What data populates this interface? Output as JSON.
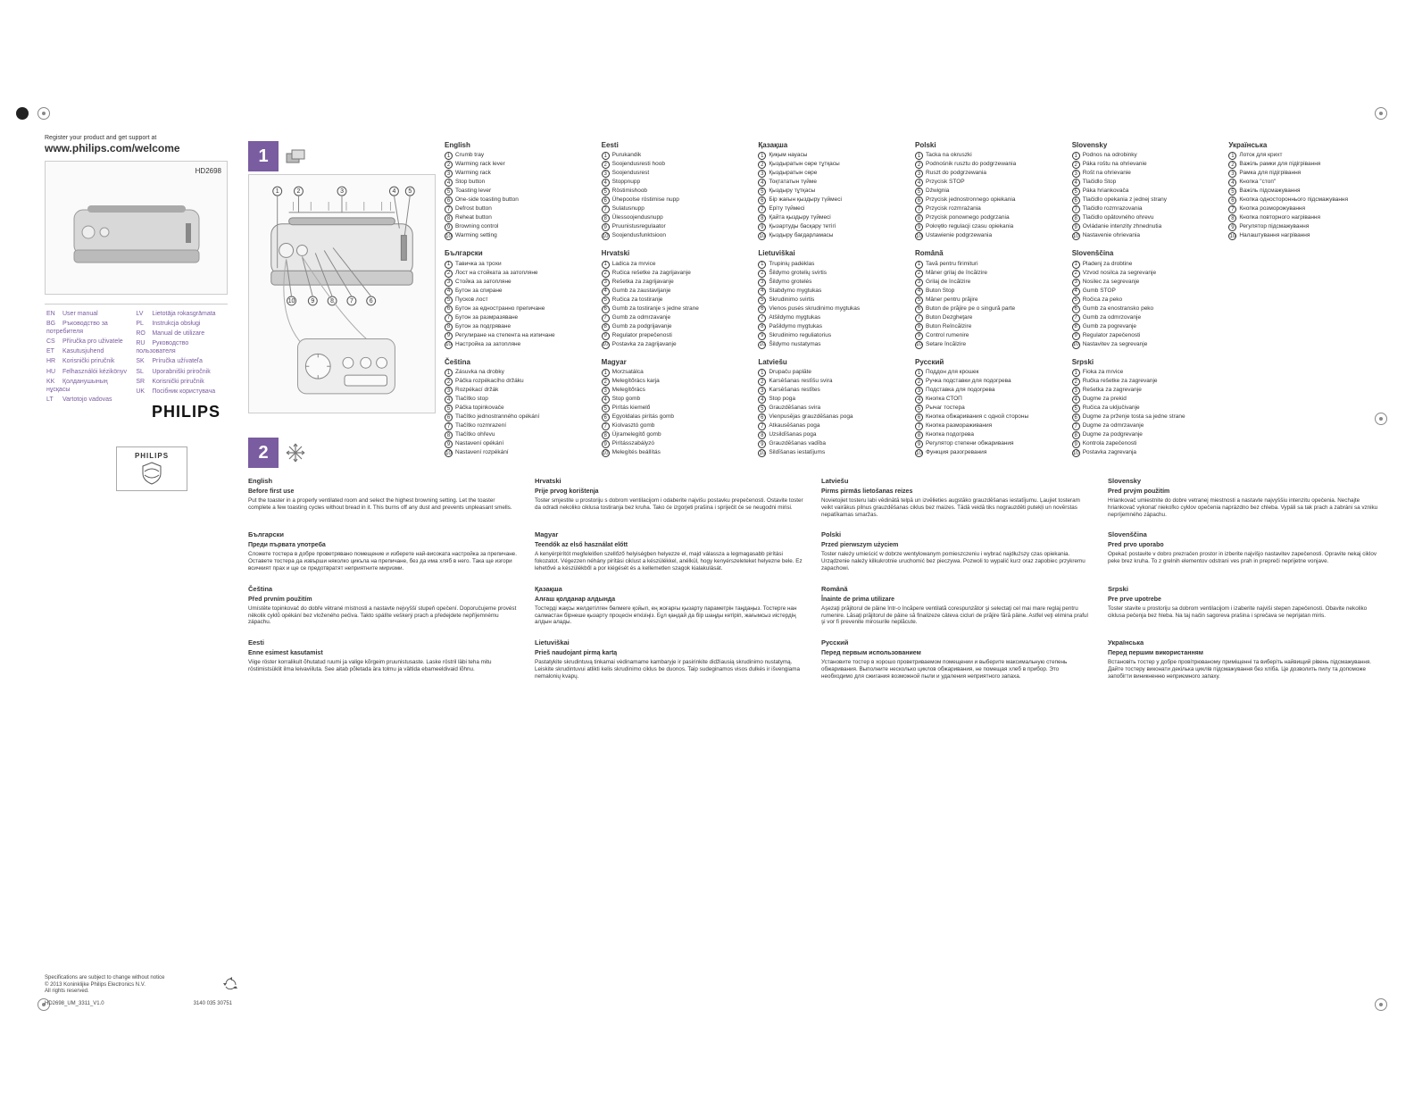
{
  "register_small": "Register your product and get support at",
  "register_url": "www.philips.com/welcome",
  "model": "HD2698",
  "brand": "PHILIPS",
  "lang_list_left": [
    {
      "code": "EN",
      "label": "User manual"
    },
    {
      "code": "BG",
      "label": "Ръководство за потребителя"
    },
    {
      "code": "CS",
      "label": "Příručka pro uživatele"
    },
    {
      "code": "ET",
      "label": "Kasutusjuhend"
    },
    {
      "code": "HR",
      "label": "Korisnički priručnik"
    },
    {
      "code": "HU",
      "label": "Felhasználói kézikönyv"
    },
    {
      "code": "KK",
      "label": "Қолданушының нұсқасы"
    },
    {
      "code": "LT",
      "label": "Vartotojo vadovas"
    }
  ],
  "lang_list_right": [
    {
      "code": "LV",
      "label": "Lietotāja rokasgrāmata"
    },
    {
      "code": "PL",
      "label": "Instrukcja obsługi"
    },
    {
      "code": "RO",
      "label": "Manual de utilizare"
    },
    {
      "code": "RU",
      "label": "Руководство пользователя"
    },
    {
      "code": "SK",
      "label": "Príručka užívateľa"
    },
    {
      "code": "SL",
      "label": "Uporabniški priročnik"
    },
    {
      "code": "SR",
      "label": "Korisnički priručnik"
    },
    {
      "code": "UK",
      "label": "Посібник користувача"
    }
  ],
  "footer": {
    "line1": "Specifications are subject to change without notice",
    "line2": "© 2013 Koninklijke Philips Electronics N.V.",
    "line3": "All rights reserved.",
    "doc": "HD2698_UM_3311_V1.0",
    "code": "3140 035 30751"
  },
  "step1": "1",
  "step2": "2",
  "callouts": [
    "1",
    "2",
    "3",
    "4",
    "5",
    "6",
    "7",
    "8",
    "9",
    "10"
  ],
  "parts_columns": [
    [
      {
        "lang": "English",
        "items": [
          "Crumb tray",
          "Warming rack lever",
          "Warming rack",
          "Stop button",
          "Toasting lever",
          "One-side toasting button",
          "Defrost button",
          "Reheat button",
          "Browning control",
          "Warming setting"
        ]
      },
      {
        "lang": "Български",
        "items": [
          "Тавичка за трохи",
          "Лост на стойката за затопляне",
          "Стойка за затопляне",
          "Бутон за спиране",
          "Пусков лост",
          "Бутон за едностранно препичане",
          "Бутон за размразяване",
          "Бутон за подгряване",
          "Регулиране на степента на изпичане",
          "Настройка за затопляне"
        ]
      },
      {
        "lang": "Čeština",
        "items": [
          "Zásuvka na drobky",
          "Páčka rozpékacího držáku",
          "Rozpékací držák",
          "Tlačítko stop",
          "Páčka topinkovače",
          "Tlačítko jednostranného opékání",
          "Tlačítko rozmrazení",
          "Tlačítko ohřevu",
          "Nastavení opékání",
          "Nastavení rozpékání"
        ]
      }
    ],
    [
      {
        "lang": "Eesti",
        "items": [
          "Purukandik",
          "Soojendusresti hoob",
          "Soojendusrest",
          "Stoppnupp",
          "Röstimishoob",
          "Ühepoolse röstimise nupp",
          "Sulatusnupp",
          "Ülessoojendusnupp",
          "Pruunistusregulaator",
          "Soojendusfunktsioon"
        ]
      },
      {
        "lang": "Hrvatski",
        "items": [
          "Ladica za mrvice",
          "Ručica rešetke za zagrijavanje",
          "Rešetka za zagrijavanje",
          "Gumb za zaustavljanje",
          "Ručica za tostiranje",
          "Gumb za tostiranje s jedne strane",
          "Gumb za odmrzavanje",
          "Gumb za podgrijavanje",
          "Regulator prepečenosti",
          "Postavka za zagrijavanje"
        ]
      },
      {
        "lang": "Magyar",
        "items": [
          "Morzsatálca",
          "Melegítőrács karja",
          "Melegítőrács",
          "Stop gomb",
          "Pirítás kiemelő",
          "Egyoldalas pirítás gomb",
          "Kiolvasztó gomb",
          "Újramelegítő gomb",
          "Pirításszabályzó",
          "Melegítés beállítás"
        ]
      }
    ],
    [
      {
        "lang": "Қазақша",
        "items": [
          "Қиқым науасы",
          "Қыздыратын сөре тұтқасы",
          "Қыздыратын сөре",
          "Тоқтататын түйме",
          "Қыздыру тұтқасы",
          "Бір жағын қыздыру түймесі",
          "Еріту түймесі",
          "Қайта қыздыру түймесі",
          "Қызартуды басқару тетігі",
          "Қыздыру бағдарламасы"
        ]
      },
      {
        "lang": "Lietuviškai",
        "items": [
          "Trupinių padėklas",
          "Šildymo grotelių svirtis",
          "Šildymo grotelės",
          "Stabdymo mygtukas",
          "Skrudinimo svirtis",
          "Vienos pusės skrudinimo mygtukas",
          "Atšildymo mygtukas",
          "Pašildymo mygtukas",
          "Skrudinimo reguliatorius",
          "Šildymo nustatymas"
        ]
      },
      {
        "lang": "Latviešu",
        "items": [
          "Drupaču paplāte",
          "Karsēšanas restīšu svira",
          "Karsēšanas restītes",
          "Stop poga",
          "Grauzdēšanas svira",
          "Vienpusējas grauzdēšanas poga",
          "Atkausēšanas poga",
          "Uzsildīšanas poga",
          "Grauzdēšanas vadība",
          "Sildīšanas iestatījums"
        ]
      }
    ],
    [
      {
        "lang": "Polski",
        "items": [
          "Tacka na okruszki",
          "Podnośnik rusztu do podgrzewania",
          "Ruszt do podgrzewania",
          "Przycisk STOP",
          "Dźwignia",
          "Przycisk jednostronnego opiekania",
          "Przycisk rozmrażania",
          "Przycisk ponownego podgrzania",
          "Pokrętło regulacji czasu opiekania",
          "Ustawienie podgrzewania"
        ]
      },
      {
        "lang": "Română",
        "items": [
          "Tavă pentru firimituri",
          "Mâner grilaj de încălzire",
          "Grilaj de încălzire",
          "Buton Stop",
          "Mâner pentru prăjire",
          "Buton de prăjire pe o singură parte",
          "Buton Dezgheţare",
          "Buton Reîncălzire",
          "Control rumenire",
          "Setare încălzire"
        ]
      },
      {
        "lang": "Русский",
        "items": [
          "Поддон для крошек",
          "Ручка подставки для подогрева",
          "Подставка для подогрева",
          "Кнопка СТОП",
          "Рычаг тостера",
          "Кнопка обжаривания с одной стороны",
          "Кнопка размораживания",
          "Кнопка подогрева",
          "Регулятор степени обжаривания",
          "Функция разогревания"
        ]
      }
    ],
    [
      {
        "lang": "Slovensky",
        "items": [
          "Podnos na odrobinky",
          "Páka roštu na ohrievanie",
          "Rošt na ohrievanie",
          "Tlačidlo Stop",
          "Páka hriankovača",
          "Tlačidlo opekania z jednej strany",
          "Tlačidlo rozmrazovania",
          "Tlačidlo opätovného ohrevu",
          "Ovládanie intenzity zhnednutia",
          "Nastavenie ohrievania"
        ]
      },
      {
        "lang": "Slovenščina",
        "items": [
          "Pladenj za drobtine",
          "Vzvod nosilca za segrevanje",
          "Nosilec za segrevanje",
          "Gumb STOP",
          "Ročica za peko",
          "Gumb za enostransko peko",
          "Gumb za odmrzovanje",
          "Gumb za pogrevanje",
          "Regulator zapečenosti",
          "Nastavitev za segrevanje"
        ]
      },
      {
        "lang": "Srpski",
        "items": [
          "Fioka za mrvice",
          "Ručka rešetke za zagrevanje",
          "Rešetka za zagrevanje",
          "Dugme za prekid",
          "Ručica za uključivanje",
          "Dugme za prženje tosta sa jedne strane",
          "Dugme za odmrzavanje",
          "Dugme za podgrevanje",
          "Kontrola zapečenosti",
          "Postavka zagrevanja"
        ]
      }
    ],
    [
      {
        "lang": "Українська",
        "items": [
          "Лоток для крихт",
          "Важіль рамки для підігрівання",
          "Рамка для підігрівання",
          "Кнопка \"стоп\"",
          "Важіль підсмажування",
          "Кнопка одностороннього підсмажування",
          "Кнопка розморожування",
          "Кнопка повторного нагрівання",
          "Регулятор підсмажування",
          "Налаштування нагрівання"
        ]
      }
    ]
  ],
  "instructions": [
    {
      "lang": "English",
      "sub": "Before first use",
      "body": "Put the toaster in a properly ventilated room and select the highest browning setting. Let the toaster complete a few toasting cycles without bread in it. This burns off any dust and prevents unpleasant smells."
    },
    {
      "lang": "Hrvatski",
      "sub": "Prije prvog korištenja",
      "body": "Toster smjestite u prostoriju s dobrom ventilacijom i odaberite najvišu postavku prepečenosti. Ostavite toster da odradi nekoliko ciklusa tostiranja bez kruha. Tako će izgorjeti prašina i spriječit će se neugodni mirisi."
    },
    {
      "lang": "Latviešu",
      "sub": "Pirms pirmās lietošanas reizes",
      "body": "Novietojiet tosteru labi vēdinātā telpā un izvēlieties augstāko grauzdēšanas iestatījumu. Ļaujiet tosteram veikt vairākus pilnus grauzdēšanas ciklus bez maizes. Tādā veidā tiks nograuzdēti putekļi un novērstas nepatīkamas smaržas."
    },
    {
      "lang": "Slovensky",
      "sub": "Pred prvým použitím",
      "body": "Hriankovač umiestnite do dobre vetranej miestnosti a nastavte najvyššiu intenzitu opečenia. Nechajte hriankovač vykonať niekoľko cyklov opečenia naprázdno bez chleba. Vypáli sa tak prach a zabráni sa vzniku nepríjemného zápachu."
    },
    {
      "lang": "Български",
      "sub": "Преди първата употреба",
      "body": "Сложете тостера в добре проветрявано помещение и изберете най-високата настройка за препичане. Оставете тостера да извърши няколко цикъла на препичане, без да има хляб в него. Така ще изгори всичкият прах и ще се предотвратят неприятните миризми."
    },
    {
      "lang": "Magyar",
      "sub": "Teendők az első használat előtt",
      "body": "A kenyérpirítót megfelelően szellőző helyiségben helyezze el, majd válassza a legmagasabb pirítási fokozatot. Végezzen néhány pirítási ciklust a készülékkel, anélkül, hogy kenyérszeleteket helyezne bele. Ez lehetővé a készülékből a por kiégését és a kellemetlen szagok kialakulását."
    },
    {
      "lang": "Polski",
      "sub": "Przed pierwszym użyciem",
      "body": "Toster należy umieścić w dobrze wentylowanym pomieszczeniu i wybrać najdłuższy czas opiekania. Urządzenie należy kilkukrotnie uruchomić bez pieczywa. Pozwoli to wypalić kurz oraz zapobiec przykremu zapachowi."
    },
    {
      "lang": "Slovenščina",
      "sub": "Pred prvo uporabo",
      "body": "Opekač postavite v dobro prezračen prostor in izberite najvišjo nastavitev zapečenosti. Opravite nekaj ciklov peke brez kruha. To z grelnih elementov odstrani ves prah in prepreči neprijetne vonjave."
    },
    {
      "lang": "Čeština",
      "sub": "Před prvním použitím",
      "body": "Umístěte topinkovač do dobře větrané místnosti a nastavte nejvyšší stupeň opečení. Doporučujeme provést několik cyklů opékání bez vloženého pečiva. Takto spálíte veškerý prach a předejdete nepříjemnému zápachu."
    },
    {
      "lang": "Қазақша",
      "sub": "Алғаш қолданар алдында",
      "body": "Тостерді жақсы желдетілген бөлмеге қойып, ең жоғарғы қызарту параметрін таңдаңыз. Тостерге нан салмастан бірнеше қызарту процесін өткізіңіз. Бұл қандай да бір шаңды кетіріп, жағымсыз иістердің алдын алады."
    },
    {
      "lang": "Română",
      "sub": "Înainte de prima utilizare",
      "body": "Aşezaţi prăjitorul de pâine într-o încăpere ventilată corespunzător şi selectaţi cel mai mare reglaj pentru rumenire. Lăsaţi prăjitorul de pâine să finalizeze câteva cicluri de prăjire fără pâine. Astfel veţi elimina praful şi vor fi prevenite mirosurile neplăcute."
    },
    {
      "lang": "Srpski",
      "sub": "Pre prve upotrebe",
      "body": "Toster stavite u prostoriju sa dobrom ventilacijom i izaberite najviši stepen zapečenosti. Obavite nekoliko ciklusa pečenja bez hleba. Na taj način sagoreva prašina i sprečava se neprijatan miris."
    },
    {
      "lang": "Eesti",
      "sub": "Enne esimest kasutamist",
      "body": "Viige röster korralikult õhutatud ruumi ja valige kõrgeim pruunistusaste. Laske röstril läbi teha mitu röstimistsüklit ilma leivaviiluta. See aitab põletada ära tolmu ja vältida ebameeldivaid lõhnu."
    },
    {
      "lang": "Lietuviškai",
      "sub": "Prieš naudojant pirmą kartą",
      "body": "Pastatykite skrudintuvą tinkamai vėdinamame kambaryje ir pasirinkite didžiausią skrudinimo nustatymą. Leiskite skrudintuvui atlikti kelis skrudinimo ciklus be duonos. Taip sudeginamos visos dulkės ir išvengiama nemalonių kvapų."
    },
    {
      "lang": "Русский",
      "sub": "Перед первым использованием",
      "body": "Установите тостер в хорошо проветриваемом помещении и выберите максимальную степень обжаривания. Выполните несколько циклов обжаривания, не помещая хлеб в прибор. Это необходимо для сжигания возможной пыли и удаления неприятного запаха."
    },
    {
      "lang": "Українська",
      "sub": "Перед першим використанням",
      "body": "Встановіть тостер у добре провітрюваному приміщенні та виберіть найвищий рівень підсмажування. Дайте тостеру виконати декілька циклів підсмажування без хліба. Це дозволить пилу та допоможе запобігти виникненню неприємного запаху."
    }
  ],
  "colors": {
    "accent": "#7a5ca0",
    "border": "#cccccc",
    "bg": "#fafafa"
  }
}
